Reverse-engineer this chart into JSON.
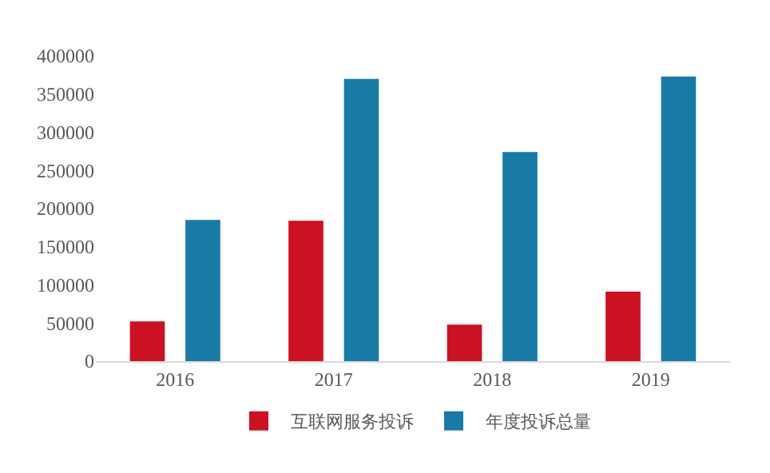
{
  "chart_data": {
    "type": "bar",
    "categories": [
      "2016",
      "2017",
      "2018",
      "2019"
    ],
    "series": [
      {
        "name": "互联网服务投诉",
        "color": "#cc1122",
        "values": [
          52000,
          184000,
          48000,
          91000
        ]
      },
      {
        "name": "年度投诉总量",
        "color": "#1a7aa6",
        "values": [
          185000,
          370000,
          274000,
          373000
        ]
      }
    ],
    "ylim": [
      0,
      400000
    ],
    "yticks": [
      0,
      50000,
      100000,
      150000,
      200000,
      250000,
      300000,
      350000,
      400000
    ],
    "grid": false,
    "legend": "bottom"
  }
}
